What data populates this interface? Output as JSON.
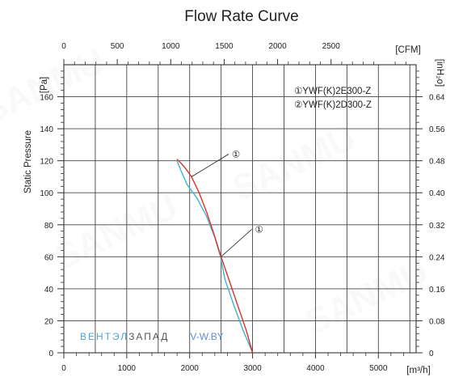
{
  "chart_data": {
    "type": "line",
    "title": "Flow Rate Curve",
    "xlabel": "[m³/h]",
    "ylabel": "Static Pressure",
    "y_unit_label": "[Pa]",
    "x_top_unit_label": "[CFM]",
    "y_right_unit_label": "[inH₂o]",
    "xlim": [
      0,
      5600
    ],
    "ylim": [
      0,
      180
    ],
    "x_ticks": [
      0,
      1000,
      2000,
      3000,
      4000,
      5000
    ],
    "x_tick_labels": [
      "0",
      "1000",
      "2000",
      "3000",
      "4000",
      "5000"
    ],
    "x_top_ticks": [
      0,
      500,
      1000,
      1500,
      2000,
      2500
    ],
    "x_top_tick_labels": [
      "0",
      "500",
      "1000",
      "1500",
      "2000",
      "2500"
    ],
    "y_ticks": [
      0,
      20,
      40,
      60,
      80,
      100,
      120,
      140,
      160
    ],
    "y_tick_labels": [
      "0",
      "20",
      "40",
      "60",
      "80",
      "100",
      "120",
      "140",
      "160"
    ],
    "y_right_tick_labels": [
      "0",
      "0.08",
      "0.16",
      "0.24",
      "0.32",
      "0.40",
      "0.48",
      "0.56",
      "0.64"
    ],
    "grid": true,
    "legend_position": "top-right",
    "legend": [
      "①YWF(K)2E300-Z",
      "②YWF(K)2D300-Z"
    ],
    "series": [
      {
        "name": "①YWF(K)2E300-Z",
        "marker": "①",
        "color": "#e0302a",
        "x": [
          1800,
          1920,
          2030,
          2150,
          2270,
          2380,
          2500,
          2630,
          2760,
          2900,
          3000
        ],
        "y": [
          121,
          116,
          110,
          100,
          88,
          75,
          60,
          45,
          30,
          14,
          0
        ]
      },
      {
        "name": "②YWF(K)2D300-Z",
        "marker": "②",
        "color": "#3ab6d6",
        "x": [
          1800,
          1860,
          1960,
          2110,
          2260,
          2400,
          2490,
          2560,
          2700,
          2850,
          3000
        ],
        "y": [
          120,
          114,
          105,
          97,
          86,
          72,
          60,
          46,
          30,
          14,
          0
        ]
      }
    ]
  },
  "watermark": {
    "part1": "ВЕНТЭЛ",
    "part2": "ЗАПАД",
    "part3": "V-W.BY",
    "color1": "#4aa6e0",
    "color2": "#555555",
    "color3": "#5f8fd0"
  },
  "background_watermark_text": "SANMU"
}
